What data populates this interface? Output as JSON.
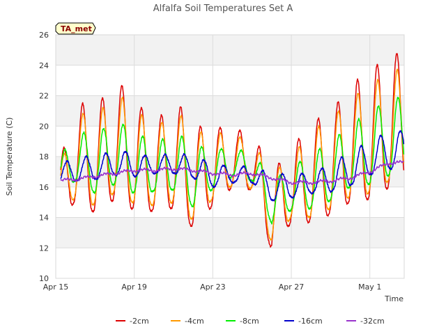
{
  "chart_data": {
    "type": "line",
    "title": "Alfalfa Soil Temperatures Set A",
    "xlabel": "Time",
    "ylabel": "Soil Temperature (C)",
    "badge": "TA_met",
    "ylim": [
      10,
      26
    ],
    "yticks": [
      10,
      12,
      14,
      16,
      18,
      20,
      22,
      24,
      26
    ],
    "xlim": [
      "2023-04-15",
      "2023-05-02T18:00"
    ],
    "xticks": [
      {
        "label": "Apr 15",
        "date": "2023-04-15"
      },
      {
        "label": "Apr 19",
        "date": "2023-04-19"
      },
      {
        "label": "Apr 23",
        "date": "2023-04-23"
      },
      {
        "label": "Apr 27",
        "date": "2023-04-27"
      },
      {
        "label": "May 1",
        "date": "2023-05-01"
      }
    ],
    "grid": true,
    "legend_position": "bottom",
    "colors": {
      "-2cm": "#dd0000",
      "-4cm": "#ff9900",
      "-8cm": "#00ee00",
      "-16cm": "#0000cc",
      "-32cm": "#9933cc"
    },
    "x": [
      "2023-04-15",
      "2023-04-16",
      "2023-04-17",
      "2023-04-18",
      "2023-04-19",
      "2023-04-20",
      "2023-04-21",
      "2023-04-22",
      "2023-04-23",
      "2023-04-24",
      "2023-04-25",
      "2023-04-26",
      "2023-04-27",
      "2023-04-28",
      "2023-04-29",
      "2023-04-30",
      "2023-05-01",
      "2023-05-02"
    ],
    "series": [
      {
        "name": "-2cm",
        "max": [
          16.5,
          21.7,
          21.1,
          23.1,
          22.0,
          19.9,
          22.0,
          20.0,
          20.0,
          19.8,
          19.6,
          17.0,
          18.5,
          20.3,
          20.9,
          22.7,
          23.6,
          24.8
        ],
        "min": [
          13.8,
          15.0,
          14.3,
          15.2,
          14.5,
          14.4,
          14.6,
          13.3,
          14.8,
          16.0,
          15.8,
          11.8,
          13.7,
          13.7,
          14.2,
          15.0,
          15.2,
          16.0
        ]
      },
      {
        "name": "-4cm",
        "max": [
          16.2,
          21.0,
          20.6,
          22.1,
          21.5,
          19.5,
          21.4,
          19.6,
          19.6,
          19.4,
          19.1,
          16.9,
          17.9,
          19.7,
          20.4,
          21.9,
          22.6,
          23.7
        ],
        "min": [
          14.3,
          15.3,
          14.8,
          15.6,
          14.9,
          14.8,
          15.0,
          13.8,
          15.2,
          16.1,
          15.9,
          12.3,
          14.0,
          14.0,
          14.6,
          15.4,
          15.6,
          16.4
        ]
      },
      {
        "name": "-8cm",
        "max": [
          17.5,
          19.6,
          19.5,
          20.3,
          19.9,
          18.6,
          19.8,
          18.7,
          18.6,
          18.4,
          18.4,
          16.4,
          17.3,
          18.2,
          18.9,
          20.1,
          20.9,
          21.9
        ],
        "min": [
          15.6,
          16.4,
          15.6,
          16.2,
          15.6,
          15.7,
          15.8,
          14.7,
          15.9,
          16.7,
          16.4,
          13.6,
          14.5,
          14.6,
          15.1,
          16.0,
          16.2,
          16.8
        ]
      },
      {
        "name": "-16cm",
        "max": [
          17.3,
          18.0,
          18.0,
          18.4,
          18.3,
          17.9,
          18.3,
          18.0,
          17.6,
          17.3,
          17.4,
          16.8,
          16.9,
          16.9,
          17.5,
          18.3,
          19.0,
          19.7
        ],
        "min": [
          16.2,
          16.4,
          16.5,
          16.8,
          16.7,
          16.9,
          16.9,
          16.6,
          16.0,
          16.3,
          16.3,
          15.1,
          15.3,
          15.6,
          15.7,
          16.1,
          16.8,
          17.2
        ]
      },
      {
        "name": "-32cm",
        "values": [
          16.4,
          16.5,
          16.7,
          16.9,
          17.1,
          17.1,
          17.2,
          17.1,
          16.9,
          16.8,
          16.9,
          16.6,
          16.3,
          16.3,
          16.4,
          16.6,
          17.0,
          17.6
        ]
      }
    ]
  }
}
